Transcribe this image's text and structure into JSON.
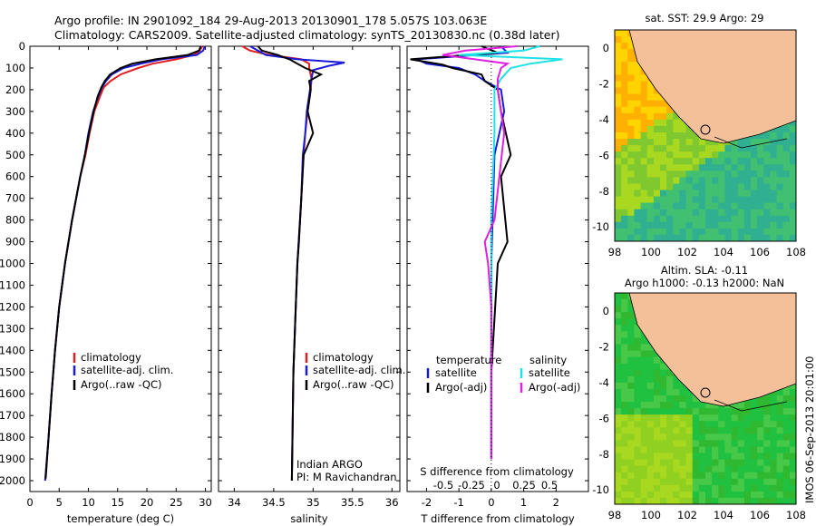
{
  "header": {
    "line1": "Argo profile: IN 2901092_184 29-Aug-2013 20130901_178 5.057S 103.063E",
    "line2": "Climatology: CARS2009. Satellite-adjusted climatology: synTS_20130830.nc (0.38d later)"
  },
  "colors": {
    "clim": "#e02020",
    "sat": "#1a1ad8",
    "argo": "#000000",
    "sat_s": "#20e0e8",
    "argo_s": "#e020e0"
  },
  "chart_data": [
    {
      "type": "line",
      "xlabel": "temperature (deg C)",
      "ylim": [
        0,
        2050
      ],
      "xlim": [
        0,
        31
      ],
      "xticks": [
        0,
        5,
        10,
        15,
        20,
        25,
        30
      ],
      "yticks": [
        0,
        100,
        200,
        300,
        400,
        500,
        600,
        700,
        800,
        900,
        1000,
        1100,
        1200,
        1300,
        1400,
        1500,
        1600,
        1700,
        1800,
        1900,
        2000
      ],
      "legend": [
        "climatology",
        "satellite-adj. clim.",
        "Argo(..raw -QC)"
      ],
      "series": [
        {
          "name": "climatology",
          "depth": [
            0,
            20,
            40,
            60,
            80,
            100,
            130,
            160,
            190,
            230,
            300,
            400,
            500,
            600,
            800,
            1000,
            1200,
            1400,
            1600,
            1800,
            2000
          ],
          "values": [
            29.5,
            29.0,
            28.0,
            25.0,
            21.0,
            18.5,
            15.5,
            13.8,
            12.6,
            12.0,
            11.0,
            10.2,
            9.5,
            8.6,
            7.2,
            6.0,
            5.0,
            4.3,
            3.7,
            3.2,
            2.6
          ]
        },
        {
          "name": "satellite-adj. clim.",
          "depth": [
            0,
            20,
            40,
            60,
            80,
            100,
            130,
            160,
            190,
            230,
            300,
            400,
            500,
            600,
            800,
            1000,
            1200,
            1400,
            1600,
            1800,
            2000
          ],
          "values": [
            29.9,
            29.6,
            28.5,
            22.5,
            19.0,
            16.0,
            14.0,
            13.0,
            12.3,
            11.7,
            10.8,
            10.0,
            9.4,
            8.6,
            7.2,
            6.0,
            5.0,
            4.3,
            3.7,
            3.2,
            2.6
          ]
        },
        {
          "name": "Argo(..raw -QC)",
          "depth": [
            0,
            20,
            40,
            60,
            80,
            100,
            130,
            160,
            190,
            230,
            300,
            400,
            500,
            600,
            800,
            1000,
            1200,
            1400,
            1600,
            1800,
            1990
          ],
          "values": [
            29.2,
            28.9,
            27.0,
            21.5,
            17.5,
            15.5,
            13.7,
            12.8,
            12.2,
            11.6,
            10.9,
            10.1,
            9.4,
            8.6,
            7.2,
            6.0,
            5.0,
            4.3,
            3.7,
            3.2,
            2.7
          ]
        }
      ]
    },
    {
      "type": "line",
      "xlabel": "salinity",
      "xlim": [
        33.8,
        36.1
      ],
      "xticks": [
        34,
        34.5,
        35,
        35.5,
        36
      ],
      "legend": [
        "climatology",
        "satellite-adj. clim.",
        "Argo(..raw -QC)"
      ],
      "annotation": [
        "Indian ARGO",
        "PI: M Ravichandran"
      ],
      "series": [
        {
          "name": "climatology",
          "depth": [
            0,
            20,
            40,
            60,
            80,
            100,
            150,
            200,
            300,
            400,
            500,
            700,
            1000,
            1200,
            1500,
            2000
          ],
          "values": [
            34.1,
            34.2,
            34.45,
            34.85,
            34.95,
            34.95,
            34.98,
            34.97,
            34.93,
            34.9,
            34.88,
            34.85,
            34.8,
            34.78,
            34.75,
            34.73
          ]
        },
        {
          "name": "satellite-adj. clim.",
          "depth": [
            0,
            20,
            40,
            60,
            75,
            90,
            110,
            150,
            200,
            300,
            400,
            500,
            700,
            1000,
            1200,
            1500,
            2000
          ],
          "values": [
            34.2,
            34.3,
            34.4,
            34.8,
            35.4,
            35.2,
            35.0,
            34.98,
            34.96,
            34.92,
            34.9,
            34.87,
            34.85,
            34.8,
            34.78,
            34.75,
            34.73
          ]
        },
        {
          "name": "Argo(..raw -QC)",
          "depth": [
            0,
            20,
            40,
            60,
            80,
            100,
            130,
            160,
            200,
            300,
            400,
            500,
            700,
            900,
            1000,
            1200,
            1500,
            2000
          ],
          "values": [
            34.3,
            34.35,
            34.55,
            34.7,
            34.8,
            34.9,
            35.1,
            34.95,
            34.97,
            34.93,
            35.0,
            34.88,
            34.85,
            34.82,
            34.8,
            34.78,
            34.75,
            34.73
          ]
        }
      ]
    },
    {
      "type": "line",
      "xlabel": "T difference from climatology",
      "xlabel2": "S difference from climatology",
      "xlim": [
        -2.6,
        3.0
      ],
      "xticks": [
        -2,
        -1,
        0,
        1,
        2
      ],
      "xticks2": [
        "-0.5",
        "-0.25",
        "0",
        "0.25",
        "0.5"
      ],
      "legend_left_title": "temperature",
      "legend_right_title": "salinity",
      "legend": [
        "satellite",
        "Argo(-adj)",
        "satellite",
        "Argo(-adj)"
      ],
      "series": [
        {
          "name": "satellite",
          "depth": [
            0,
            30,
            60,
            80,
            100,
            130,
            160,
            200,
            300,
            500,
            1000,
            1500,
            1900
          ],
          "values": [
            0.3,
            0.5,
            -2.3,
            -2.0,
            -1.0,
            -0.5,
            -0.2,
            0.3,
            0.4,
            0.1,
            0.0,
            0.0,
            0.0
          ]
        },
        {
          "name": "Argo(-adj)",
          "depth": [
            0,
            30,
            60,
            85,
            100,
            130,
            160,
            200,
            300,
            500,
            600,
            900,
            1000,
            1500,
            1900
          ],
          "values": [
            -0.3,
            0.2,
            -2.5,
            -1.5,
            -1.2,
            -0.3,
            -0.2,
            0.2,
            0.3,
            0.6,
            0.3,
            0.5,
            0.2,
            0.0,
            0.0
          ]
        },
        {
          "name": "satellite",
          "depth": [
            0,
            20,
            40,
            60,
            80,
            100,
            150,
            200,
            400,
            800,
            1200,
            1600,
            1900
          ],
          "values": [
            1.5,
            1.0,
            -1.0,
            2.2,
            1.2,
            0.6,
            0.3,
            0.1,
            0.1,
            0.0,
            0.0,
            0.0,
            0.0
          ]
        },
        {
          "name": "Argo(-adj)",
          "depth": [
            0,
            20,
            40,
            60,
            80,
            100,
            150,
            200,
            400,
            800,
            900,
            1000,
            1200,
            1600,
            1900
          ],
          "values": [
            0.8,
            -0.8,
            -1.5,
            -0.5,
            0.5,
            0.3,
            0.2,
            0.2,
            0.4,
            0.1,
            -0.2,
            -0.1,
            0.0,
            0.0,
            0.0
          ]
        }
      ]
    }
  ],
  "maps": {
    "top_title": "sat. SST: 29.9 Argo: 29",
    "bottom_title1": "Altim. SLA: -0.11",
    "bottom_title2": "Argo h1000: -0.13 h2000: NaN",
    "xticks": [
      "98",
      "100",
      "102",
      "104",
      "106",
      "108"
    ],
    "yticks": [
      "0",
      "-2",
      "-4",
      "-6",
      "-8",
      "-10"
    ]
  },
  "footer": "IMOS 06-Sep-2013 20:01:00"
}
